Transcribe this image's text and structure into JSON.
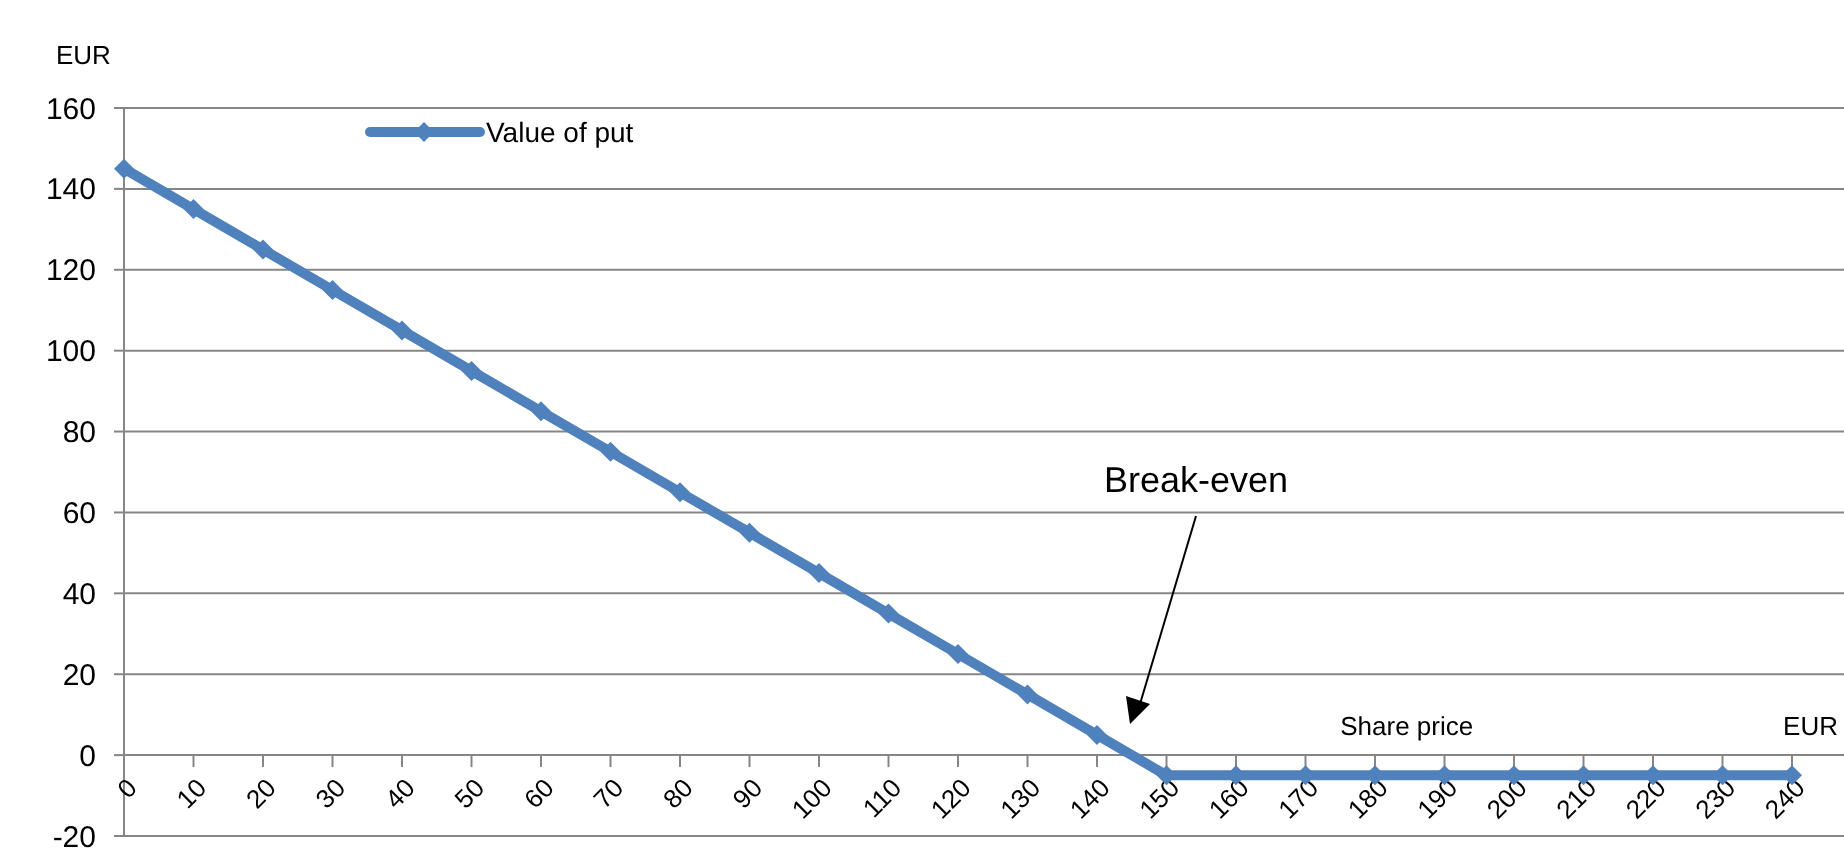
{
  "chart_data": {
    "type": "line",
    "ylabel": "EUR",
    "xlabel": "Share price",
    "annotations": [
      "Break-even",
      "EUR"
    ],
    "categories": [
      "0",
      "10",
      "20",
      "30",
      "40",
      "50",
      "60",
      "70",
      "80",
      "90",
      "100",
      "110",
      "120",
      "130",
      "140",
      "150",
      "160",
      "170",
      "180",
      "190",
      "200",
      "210",
      "220",
      "230",
      "240"
    ],
    "series": [
      {
        "name": "Value of put",
        "color": "#4f81bd",
        "values": [
          145,
          135,
          125,
          115,
          105,
          95,
          85,
          75,
          65,
          55,
          45,
          35,
          25,
          15,
          5,
          -5,
          -5,
          -5,
          -5,
          -5,
          -5,
          -5,
          -5,
          -5,
          -5
        ]
      }
    ],
    "ylim": [
      -20,
      160
    ],
    "yticks": [
      -20,
      0,
      20,
      40,
      60,
      80,
      100,
      120,
      140,
      160
    ],
    "grid": "y",
    "legend": "top left",
    "marker": "diamond",
    "line_style": "solid"
  }
}
